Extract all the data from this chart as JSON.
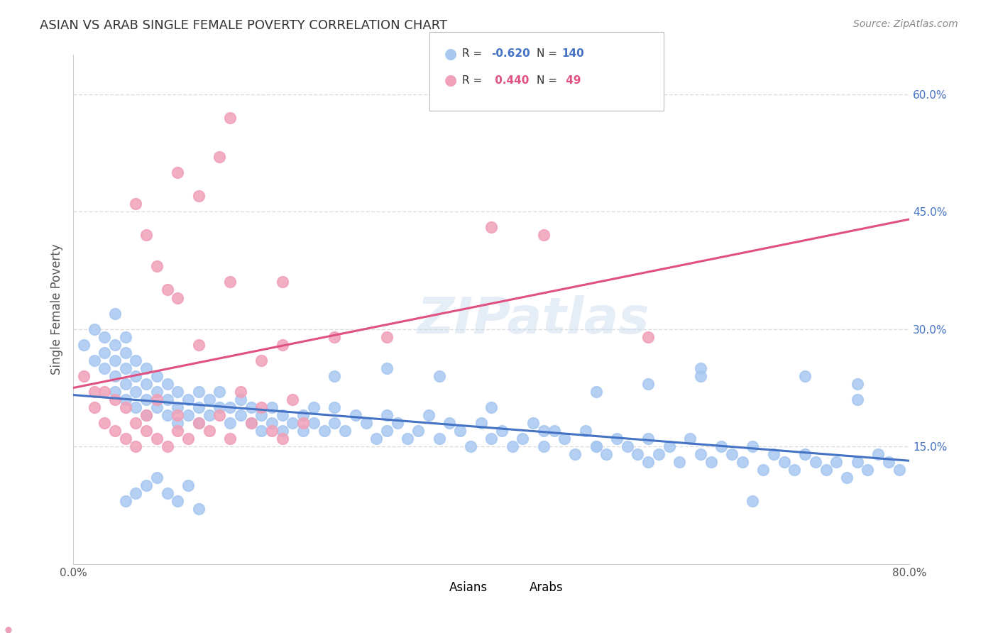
{
  "title": "ASIAN VS ARAB SINGLE FEMALE POVERTY CORRELATION CHART",
  "source": "Source: ZipAtlas.com",
  "ylabel": "Single Female Poverty",
  "xlim": [
    0.0,
    0.8
  ],
  "ylim": [
    0.0,
    0.65
  ],
  "ytick_labels_right": [
    "60.0%",
    "45.0%",
    "30.0%",
    "15.0%"
  ],
  "ytick_values_right": [
    0.6,
    0.45,
    0.3,
    0.15
  ],
  "grid_color": "#dddddd",
  "background_color": "#ffffff",
  "asian_color": "#a8c8f0",
  "arab_color": "#f0a0b8",
  "asian_line_color": "#4472c4",
  "arab_line_color": "#e05080",
  "title_color": "#333333",
  "axis_label_color": "#555555",
  "right_tick_color": "#4472c4",
  "asian_scatter_x": [
    0.01,
    0.02,
    0.02,
    0.03,
    0.03,
    0.03,
    0.04,
    0.04,
    0.04,
    0.04,
    0.05,
    0.05,
    0.05,
    0.05,
    0.05,
    0.06,
    0.06,
    0.06,
    0.06,
    0.07,
    0.07,
    0.07,
    0.07,
    0.08,
    0.08,
    0.08,
    0.09,
    0.09,
    0.09,
    0.1,
    0.1,
    0.1,
    0.11,
    0.11,
    0.12,
    0.12,
    0.12,
    0.13,
    0.13,
    0.14,
    0.14,
    0.15,
    0.15,
    0.16,
    0.16,
    0.17,
    0.17,
    0.18,
    0.18,
    0.19,
    0.19,
    0.2,
    0.2,
    0.21,
    0.22,
    0.22,
    0.23,
    0.23,
    0.24,
    0.25,
    0.25,
    0.26,
    0.27,
    0.28,
    0.29,
    0.3,
    0.3,
    0.31,
    0.32,
    0.33,
    0.34,
    0.35,
    0.36,
    0.37,
    0.38,
    0.39,
    0.4,
    0.41,
    0.42,
    0.43,
    0.44,
    0.45,
    0.46,
    0.47,
    0.48,
    0.49,
    0.5,
    0.5,
    0.51,
    0.52,
    0.53,
    0.54,
    0.55,
    0.55,
    0.56,
    0.57,
    0.58,
    0.59,
    0.6,
    0.6,
    0.61,
    0.62,
    0.63,
    0.64,
    0.65,
    0.66,
    0.67,
    0.68,
    0.69,
    0.7,
    0.71,
    0.72,
    0.73,
    0.74,
    0.75,
    0.75,
    0.76,
    0.77,
    0.78,
    0.79,
    0.04,
    0.05,
    0.06,
    0.07,
    0.08,
    0.09,
    0.1,
    0.11,
    0.12,
    0.25,
    0.3,
    0.35,
    0.4,
    0.45,
    0.5,
    0.55,
    0.6,
    0.65,
    0.7,
    0.75
  ],
  "asian_scatter_y": [
    0.28,
    0.26,
    0.3,
    0.25,
    0.27,
    0.29,
    0.22,
    0.24,
    0.26,
    0.28,
    0.23,
    0.25,
    0.27,
    0.21,
    0.29,
    0.22,
    0.24,
    0.2,
    0.26,
    0.21,
    0.23,
    0.19,
    0.25,
    0.2,
    0.22,
    0.24,
    0.19,
    0.21,
    0.23,
    0.2,
    0.22,
    0.18,
    0.21,
    0.19,
    0.2,
    0.22,
    0.18,
    0.21,
    0.19,
    0.2,
    0.22,
    0.18,
    0.2,
    0.19,
    0.21,
    0.18,
    0.2,
    0.17,
    0.19,
    0.18,
    0.2,
    0.17,
    0.19,
    0.18,
    0.19,
    0.17,
    0.18,
    0.2,
    0.17,
    0.18,
    0.2,
    0.17,
    0.19,
    0.18,
    0.16,
    0.19,
    0.17,
    0.18,
    0.16,
    0.17,
    0.19,
    0.16,
    0.18,
    0.17,
    0.15,
    0.18,
    0.16,
    0.17,
    0.15,
    0.16,
    0.18,
    0.15,
    0.17,
    0.16,
    0.14,
    0.17,
    0.15,
    0.22,
    0.14,
    0.16,
    0.15,
    0.14,
    0.16,
    0.23,
    0.14,
    0.15,
    0.13,
    0.16,
    0.14,
    0.24,
    0.13,
    0.15,
    0.14,
    0.13,
    0.15,
    0.12,
    0.14,
    0.13,
    0.12,
    0.14,
    0.13,
    0.12,
    0.13,
    0.11,
    0.13,
    0.21,
    0.12,
    0.14,
    0.13,
    0.12,
    0.32,
    0.08,
    0.09,
    0.1,
    0.11,
    0.09,
    0.08,
    0.1,
    0.07,
    0.24,
    0.25,
    0.24,
    0.2,
    0.17,
    0.15,
    0.13,
    0.25,
    0.08,
    0.24,
    0.23
  ],
  "arab_scatter_x": [
    0.01,
    0.02,
    0.02,
    0.03,
    0.03,
    0.04,
    0.04,
    0.05,
    0.05,
    0.06,
    0.06,
    0.07,
    0.07,
    0.08,
    0.08,
    0.09,
    0.1,
    0.1,
    0.11,
    0.12,
    0.13,
    0.14,
    0.15,
    0.16,
    0.17,
    0.18,
    0.19,
    0.2,
    0.21,
    0.22,
    0.06,
    0.07,
    0.08,
    0.09,
    0.1,
    0.12,
    0.15,
    0.2,
    0.4,
    0.45,
    0.1,
    0.12,
    0.14,
    0.15,
    0.18,
    0.2,
    0.25,
    0.3,
    0.55
  ],
  "arab_scatter_y": [
    0.24,
    0.2,
    0.22,
    0.18,
    0.22,
    0.17,
    0.21,
    0.16,
    0.2,
    0.18,
    0.15,
    0.17,
    0.19,
    0.16,
    0.21,
    0.15,
    0.17,
    0.19,
    0.16,
    0.18,
    0.17,
    0.19,
    0.16,
    0.22,
    0.18,
    0.2,
    0.17,
    0.16,
    0.21,
    0.18,
    0.46,
    0.42,
    0.38,
    0.35,
    0.34,
    0.47,
    0.36,
    0.36,
    0.43,
    0.42,
    0.5,
    0.28,
    0.52,
    0.57,
    0.26,
    0.28,
    0.29,
    0.29,
    0.29
  ]
}
